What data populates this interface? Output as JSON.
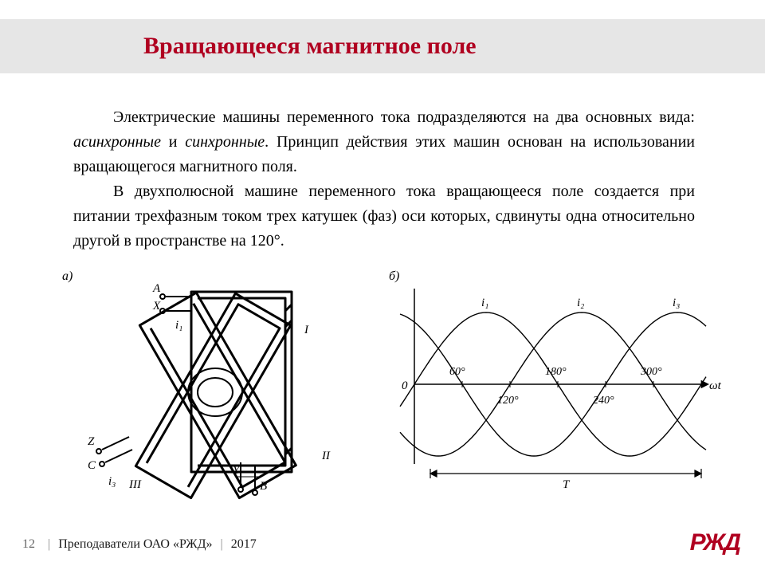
{
  "title": "Вращающееся магнитное поле",
  "paragraphs": {
    "p1a": "Электрические машины переменного тока подразделяются на два основных вида: ",
    "p1b": "асинхронные",
    "p1c": " и ",
    "p1d": "синхронные",
    "p1e": ". Принцип действия этих машин основан на использовании вращающегося магнитного поля.",
    "p2": "В двухполюсной машине переменного тока вращающееся поле создается при питании трехфазным током трех катушек (фаз) оси которых, сдвинуты одна относительно другой в пространстве на 120°."
  },
  "panel_a_label": "а)",
  "panel_b_label": "б)",
  "figA": {
    "labels": {
      "A": "A",
      "X": "X",
      "Y": "Y",
      "B": "B",
      "Z": "Z",
      "C": "C",
      "I": "I",
      "II": "II",
      "III": "III",
      "i1": "i₁",
      "i3": "i₃"
    }
  },
  "figB": {
    "series_labels": [
      "i₁",
      "i₂",
      "i₃"
    ],
    "phases_deg": [
      0,
      120,
      240
    ],
    "tick_labels": [
      "60°",
      "120°",
      "180°",
      "240°",
      "300°"
    ],
    "tick_positions": [
      60,
      120,
      180,
      240,
      300
    ],
    "axis_origin_label": "0",
    "axis_x_label": "ωt",
    "period_label": "T",
    "colors": {
      "line": "#000000",
      "bg": "#ffffff"
    },
    "line_width": 1.4,
    "xlim": [
      0,
      360
    ],
    "ylim": [
      -1.15,
      1.15
    ],
    "label_fontsize": 14
  },
  "footer": {
    "page": "12",
    "teachers": "Преподаватели ОАО «РЖД»",
    "year": "2017"
  },
  "logo_text": "РЖД",
  "colors": {
    "title": "#b00020",
    "title_band_bg": "#e6e6e6",
    "text": "#000000",
    "page_bg": "#ffffff"
  }
}
